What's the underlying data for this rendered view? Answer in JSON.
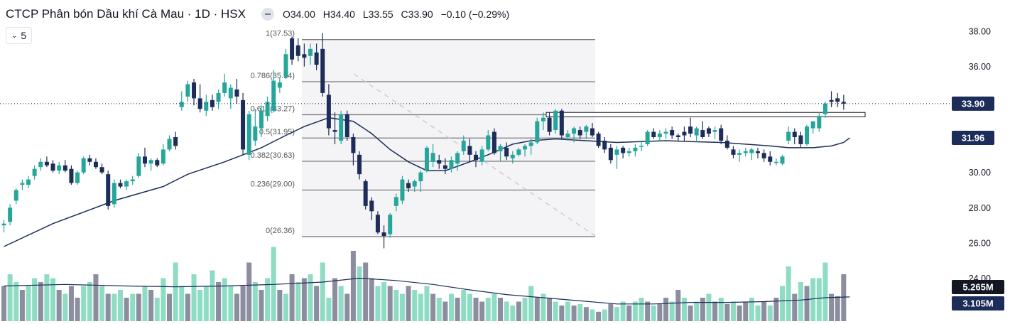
{
  "header": {
    "title": "CTCP Phân bón Dầu khí Cà Mau · 1D · HSX",
    "open": "O34.00",
    "high": "H34.40",
    "low": "L33.55",
    "close": "C33.90",
    "change": "−0.10 (−0.29%)",
    "indicator_count": "5"
  },
  "colors": {
    "up": "#26a69a",
    "down": "#1d2d5a",
    "up_volume": "#8fdcc4",
    "down_volume": "#8c8d9f",
    "ma": "#1d2d5a"
  },
  "chart_data": {
    "type": "candlestick",
    "y_axis": {
      "range": [
        24.5,
        39.0
      ],
      "ticks": [
        "38.00",
        "36.00",
        "34.00",
        "32.00",
        "30.00",
        "28.00",
        "26.00",
        "24.00"
      ]
    },
    "price_labels": {
      "last": "33.90",
      "ma": "31.96",
      "volume": "5.265M",
      "volume_ma": "3.105M"
    },
    "fib_levels": [
      {
        "ratio": "1",
        "value": 37.53,
        "label": "1(37.53)"
      },
      {
        "ratio": "0.786",
        "value": 35.14,
        "label": "0.786(35.14)"
      },
      {
        "ratio": "0.618",
        "value": 33.27,
        "label": "0.618(33.27)"
      },
      {
        "ratio": "0.5",
        "value": 31.95,
        "label": "0.5(31.95)"
      },
      {
        "ratio": "0.382",
        "value": 30.63,
        "label": "0.382(30.63)"
      },
      {
        "ratio": "0.236",
        "value": 29.0,
        "label": "0.236(29.00)"
      },
      {
        "ratio": "0",
        "value": 26.36,
        "label": "0(26.36)"
      }
    ],
    "resistance_zone": [
      33.15,
      33.4
    ],
    "candles": [
      [
        27.0,
        27.3,
        26.6,
        27.1
      ],
      [
        27.2,
        28.2,
        27.0,
        28.0
      ],
      [
        28.4,
        29.1,
        28.2,
        29.0
      ],
      [
        29.3,
        29.6,
        29.0,
        29.4
      ],
      [
        29.3,
        29.8,
        29.1,
        29.6
      ],
      [
        29.8,
        30.4,
        29.6,
        30.2
      ],
      [
        30.3,
        30.8,
        30.1,
        30.6
      ],
      [
        30.6,
        30.9,
        30.3,
        30.4
      ],
      [
        30.5,
        30.7,
        30.0,
        30.1
      ],
      [
        30.1,
        30.6,
        29.9,
        30.4
      ],
      [
        30.4,
        30.7,
        30.0,
        30.1
      ],
      [
        30.2,
        30.4,
        29.3,
        29.4
      ],
      [
        29.4,
        30.1,
        29.3,
        30.0
      ],
      [
        30.0,
        30.9,
        29.9,
        30.8
      ],
      [
        30.8,
        31.0,
        30.4,
        30.6
      ],
      [
        30.6,
        30.8,
        30.2,
        30.3
      ],
      [
        30.3,
        30.5,
        29.9,
        30.0
      ],
      [
        29.9,
        30.1,
        27.9,
        28.1
      ],
      [
        28.2,
        29.6,
        28.0,
        29.4
      ],
      [
        29.4,
        29.6,
        29.1,
        29.2
      ],
      [
        29.2,
        29.6,
        29.0,
        29.5
      ],
      [
        29.5,
        29.8,
        29.3,
        29.6
      ],
      [
        29.8,
        31.1,
        29.7,
        30.9
      ],
      [
        30.9,
        31.4,
        30.3,
        30.5
      ],
      [
        30.5,
        30.8,
        30.1,
        30.7
      ],
      [
        30.7,
        30.8,
        30.3,
        30.4
      ],
      [
        30.5,
        31.6,
        30.4,
        31.3
      ],
      [
        31.3,
        32.1,
        31.2,
        31.9
      ],
      [
        32.0,
        32.3,
        31.3,
        31.5
      ],
      [
        33.7,
        34.6,
        33.5,
        34.0
      ],
      [
        34.3,
        35.2,
        34.0,
        35.0
      ],
      [
        35.1,
        35.3,
        33.8,
        34.2
      ],
      [
        34.2,
        35.0,
        33.4,
        33.6
      ],
      [
        33.5,
        34.4,
        33.2,
        34.0
      ],
      [
        34.1,
        34.4,
        33.5,
        33.7
      ],
      [
        34.0,
        34.7,
        33.6,
        34.5
      ],
      [
        34.5,
        35.6,
        34.3,
        35.1
      ],
      [
        34.2,
        35.0,
        33.6,
        34.8
      ],
      [
        34.7,
        35.3,
        33.9,
        34.3
      ],
      [
        34.1,
        34.5,
        31.0,
        31.3
      ],
      [
        31.0,
        33.5,
        30.7,
        33.3
      ],
      [
        31.8,
        33.6,
        31.5,
        32.6
      ],
      [
        32.5,
        33.8,
        32.0,
        33.5
      ],
      [
        33.2,
        34.3,
        32.9,
        34.0
      ],
      [
        33.5,
        35.8,
        33.4,
        35.2
      ],
      [
        34.8,
        35.4,
        34.5,
        35.1
      ],
      [
        35.4,
        37.0,
        35.3,
        36.7
      ],
      [
        37.6,
        37.7,
        36.1,
        36.4
      ],
      [
        37.2,
        37.6,
        36.3,
        36.6
      ],
      [
        36.7,
        37.3,
        36.0,
        36.5
      ],
      [
        36.6,
        37.3,
        36.1,
        37.0
      ],
      [
        36.8,
        37.3,
        35.8,
        36.1
      ],
      [
        37.0,
        37.9,
        34.3,
        34.5
      ],
      [
        34.4,
        35.0,
        32.1,
        32.5
      ],
      [
        32.4,
        33.4,
        31.6,
        32.3
      ],
      [
        31.8,
        33.5,
        31.6,
        33.3
      ],
      [
        33.3,
        33.5,
        31.8,
        32.0
      ],
      [
        32.0,
        32.2,
        30.4,
        31.1
      ],
      [
        31.0,
        31.2,
        29.6,
        29.9
      ],
      [
        29.5,
        29.6,
        27.9,
        28.1
      ],
      [
        28.4,
        28.6,
        27.3,
        27.8
      ],
      [
        27.6,
        27.8,
        26.5,
        26.6
      ],
      [
        26.6,
        27.0,
        25.7,
        26.4
      ],
      [
        26.5,
        27.7,
        26.3,
        27.6
      ],
      [
        28.1,
        28.8,
        27.8,
        28.6
      ],
      [
        28.4,
        29.8,
        28.2,
        29.6
      ],
      [
        29.4,
        29.6,
        28.9,
        29.1
      ],
      [
        29.2,
        29.6,
        28.9,
        29.5
      ],
      [
        29.5,
        30.1,
        28.9,
        30.0
      ],
      [
        30.1,
        31.5,
        30.0,
        31.4
      ],
      [
        30.6,
        31.6,
        30.3,
        31.1
      ],
      [
        30.7,
        31.0,
        30.2,
        30.5
      ],
      [
        30.4,
        30.8,
        29.9,
        30.2
      ],
      [
        30.2,
        30.9,
        30.0,
        30.7
      ],
      [
        30.5,
        31.2,
        30.1,
        31.1
      ],
      [
        31.2,
        32.1,
        31.0,
        31.8
      ],
      [
        31.5,
        31.9,
        30.6,
        31.0
      ],
      [
        31.0,
        31.2,
        30.3,
        30.7
      ],
      [
        30.6,
        31.5,
        30.4,
        31.3
      ],
      [
        31.3,
        32.4,
        31.2,
        32.1
      ],
      [
        32.3,
        32.5,
        31.0,
        31.1
      ],
      [
        31.2,
        31.6,
        30.6,
        31.5
      ],
      [
        31.4,
        31.7,
        30.7,
        30.9
      ],
      [
        30.8,
        31.2,
        30.5,
        31.0
      ],
      [
        31.0,
        31.4,
        30.9,
        31.3
      ],
      [
        31.3,
        31.6,
        30.9,
        31.5
      ],
      [
        31.5,
        31.9,
        31.0,
        31.7
      ],
      [
        31.7,
        33.1,
        31.6,
        32.9
      ],
      [
        32.9,
        33.4,
        32.4,
        33.1
      ],
      [
        33.1,
        33.4,
        32.1,
        32.3
      ],
      [
        32.4,
        33.6,
        32.2,
        33.5
      ],
      [
        33.5,
        33.6,
        31.9,
        32.1
      ],
      [
        32.0,
        32.4,
        31.8,
        32.2
      ],
      [
        32.2,
        32.6,
        31.7,
        32.5
      ],
      [
        32.4,
        32.6,
        31.9,
        32.1
      ],
      [
        32.3,
        32.7,
        31.9,
        32.6
      ],
      [
        32.5,
        32.8,
        32.0,
        32.1
      ],
      [
        32.2,
        32.3,
        31.4,
        31.5
      ],
      [
        31.8,
        32.0,
        31.1,
        31.3
      ],
      [
        31.4,
        31.6,
        30.5,
        30.7
      ],
      [
        31.0,
        31.5,
        30.2,
        31.3
      ],
      [
        31.4,
        31.5,
        30.8,
        31.1
      ],
      [
        31.1,
        31.4,
        30.9,
        31.2
      ],
      [
        31.2,
        31.6,
        30.9,
        31.4
      ],
      [
        31.5,
        31.8,
        31.2,
        31.5
      ],
      [
        31.6,
        32.4,
        31.5,
        32.3
      ],
      [
        32.3,
        32.5,
        31.9,
        32.0
      ],
      [
        32.0,
        32.4,
        31.8,
        32.2
      ],
      [
        32.2,
        32.5,
        31.9,
        32.3
      ],
      [
        32.4,
        32.6,
        31.9,
        32.1
      ],
      [
        32.1,
        32.2,
        31.8,
        32.0
      ],
      [
        32.3,
        32.6,
        31.8,
        32.1
      ],
      [
        32.6,
        33.1,
        32.0,
        32.2
      ],
      [
        32.1,
        32.6,
        31.7,
        32.5
      ],
      [
        32.4,
        32.9,
        31.9,
        32.0
      ],
      [
        32.5,
        32.6,
        32.0,
        32.2
      ],
      [
        32.3,
        32.6,
        31.9,
        32.4
      ],
      [
        32.5,
        32.7,
        31.6,
        31.8
      ],
      [
        31.8,
        32.1,
        31.3,
        31.4
      ],
      [
        31.3,
        31.5,
        30.8,
        31.0
      ],
      [
        31.0,
        31.3,
        30.6,
        31.1
      ],
      [
        31.1,
        31.4,
        30.9,
        31.2
      ],
      [
        31.1,
        31.4,
        30.7,
        31.3
      ],
      [
        31.2,
        31.4,
        30.8,
        31.1
      ],
      [
        31.1,
        31.3,
        30.6,
        30.8
      ],
      [
        30.9,
        31.2,
        30.4,
        30.6
      ],
      [
        30.6,
        30.8,
        30.4,
        30.6
      ],
      [
        30.5,
        31.0,
        30.4,
        30.9
      ],
      [
        31.8,
        32.6,
        31.6,
        32.3
      ],
      [
        32.3,
        32.5,
        31.6,
        32.0
      ],
      [
        32.1,
        32.3,
        31.4,
        31.6
      ],
      [
        31.6,
        32.7,
        31.5,
        32.6
      ],
      [
        32.5,
        32.9,
        32.2,
        32.9
      ],
      [
        32.5,
        33.4,
        32.3,
        33.2
      ],
      [
        33.3,
        34.0,
        33.1,
        33.9
      ],
      [
        34.1,
        34.6,
        33.7,
        34.0
      ],
      [
        34.2,
        34.5,
        33.7,
        34.0
      ],
      [
        34.0,
        34.4,
        33.55,
        33.9
      ]
    ],
    "volume": [
      [
        0.45,
        0
      ],
      [
        0.6,
        1
      ],
      [
        0.5,
        1
      ],
      [
        0.4,
        0
      ],
      [
        0.45,
        1
      ],
      [
        0.55,
        1
      ],
      [
        0.5,
        0
      ],
      [
        0.6,
        1
      ],
      [
        0.55,
        1
      ],
      [
        0.4,
        0
      ],
      [
        0.35,
        1
      ],
      [
        0.45,
        0
      ],
      [
        0.3,
        0
      ],
      [
        0.45,
        1
      ],
      [
        0.5,
        1
      ],
      [
        0.6,
        0
      ],
      [
        0.45,
        1
      ],
      [
        0.35,
        0
      ],
      [
        0.35,
        1
      ],
      [
        0.4,
        1
      ],
      [
        0.3,
        0
      ],
      [
        0.35,
        1
      ],
      [
        0.35,
        0
      ],
      [
        0.45,
        1
      ],
      [
        0.4,
        0
      ],
      [
        0.3,
        1
      ],
      [
        0.55,
        1
      ],
      [
        0.35,
        0
      ],
      [
        0.75,
        1
      ],
      [
        0.45,
        1
      ],
      [
        0.35,
        0
      ],
      [
        0.6,
        1
      ],
      [
        0.4,
        1
      ],
      [
        0.45,
        1
      ],
      [
        0.65,
        1
      ],
      [
        0.5,
        0
      ],
      [
        0.55,
        1
      ],
      [
        0.45,
        1
      ],
      [
        0.35,
        0
      ],
      [
        0.45,
        0
      ],
      [
        0.75,
        0
      ],
      [
        0.5,
        1
      ],
      [
        0.4,
        0
      ],
      [
        0.55,
        1
      ],
      [
        0.95,
        1
      ],
      [
        0.4,
        0
      ],
      [
        0.35,
        1
      ],
      [
        0.6,
        0
      ],
      [
        0.5,
        1
      ],
      [
        0.55,
        0
      ],
      [
        0.6,
        1
      ],
      [
        0.45,
        0
      ],
      [
        0.75,
        1
      ],
      [
        0.3,
        1
      ],
      [
        0.55,
        0
      ],
      [
        0.45,
        1
      ],
      [
        0.35,
        0
      ],
      [
        0.9,
        0
      ],
      [
        0.7,
        1
      ],
      [
        0.75,
        0
      ],
      [
        0.55,
        0
      ],
      [
        0.45,
        1
      ],
      [
        0.5,
        1
      ],
      [
        0.45,
        0
      ],
      [
        0.4,
        1
      ],
      [
        0.35,
        1
      ],
      [
        0.45,
        0
      ],
      [
        0.4,
        1
      ],
      [
        0.35,
        1
      ],
      [
        0.45,
        1
      ],
      [
        0.35,
        0
      ],
      [
        0.3,
        1
      ],
      [
        0.25,
        0
      ],
      [
        0.35,
        1
      ],
      [
        0.3,
        0
      ],
      [
        0.4,
        1
      ],
      [
        0.35,
        1
      ],
      [
        0.3,
        0
      ],
      [
        0.25,
        0
      ],
      [
        0.3,
        1
      ],
      [
        0.35,
        1
      ],
      [
        0.3,
        0
      ],
      [
        0.25,
        1
      ],
      [
        0.2,
        1
      ],
      [
        0.25,
        0
      ],
      [
        0.3,
        1
      ],
      [
        0.45,
        1
      ],
      [
        0.3,
        0
      ],
      [
        0.35,
        1
      ],
      [
        0.3,
        0
      ],
      [
        0.25,
        1
      ],
      [
        0.2,
        0
      ],
      [
        0.25,
        1
      ],
      [
        0.2,
        0
      ],
      [
        0.22,
        1
      ],
      [
        0.18,
        0
      ],
      [
        0.15,
        1
      ],
      [
        0.12,
        0
      ],
      [
        0.15,
        1
      ],
      [
        0.22,
        0
      ],
      [
        0.18,
        1
      ],
      [
        0.25,
        1
      ],
      [
        0.2,
        0
      ],
      [
        0.25,
        1
      ],
      [
        0.3,
        1
      ],
      [
        0.25,
        0
      ],
      [
        0.2,
        1
      ],
      [
        0.22,
        0
      ],
      [
        0.3,
        0
      ],
      [
        0.25,
        1
      ],
      [
        0.4,
        0
      ],
      [
        0.3,
        1
      ],
      [
        0.2,
        0
      ],
      [
        0.25,
        1
      ],
      [
        0.3,
        0
      ],
      [
        0.35,
        1
      ],
      [
        0.25,
        0
      ],
      [
        0.3,
        1
      ],
      [
        0.22,
        0
      ],
      [
        0.25,
        1
      ],
      [
        0.2,
        0
      ],
      [
        0.25,
        0
      ],
      [
        0.3,
        1
      ],
      [
        0.2,
        1
      ],
      [
        0.25,
        0
      ],
      [
        0.2,
        1
      ],
      [
        0.3,
        0
      ],
      [
        0.45,
        1
      ],
      [
        0.7,
        1
      ],
      [
        0.35,
        0
      ],
      [
        0.5,
        1
      ],
      [
        0.45,
        0
      ],
      [
        0.55,
        1
      ],
      [
        0.55,
        1
      ],
      [
        0.75,
        1
      ],
      [
        0.35,
        0
      ],
      [
        0.32,
        0
      ],
      [
        0.6,
        0
      ]
    ],
    "moving_average": [
      [
        0,
        25.8
      ],
      [
        8,
        27.1
      ],
      [
        18,
        28.4
      ],
      [
        26,
        29.2
      ],
      [
        30,
        29.9
      ],
      [
        36,
        30.6
      ],
      [
        42,
        31.4
      ],
      [
        46,
        32.1
      ],
      [
        49,
        32.6
      ],
      [
        53,
        33.1
      ],
      [
        57,
        32.9
      ],
      [
        60,
        32.2
      ],
      [
        63,
        31.3
      ],
      [
        66,
        30.6
      ],
      [
        69,
        30.1
      ],
      [
        72,
        30.1
      ],
      [
        76,
        30.6
      ],
      [
        79,
        31.0
      ],
      [
        83,
        31.6
      ],
      [
        86,
        31.8
      ],
      [
        90,
        31.9
      ],
      [
        95,
        31.8
      ],
      [
        100,
        31.7
      ],
      [
        104,
        31.75
      ],
      [
        108,
        31.8
      ],
      [
        112,
        31.75
      ],
      [
        117,
        31.7
      ],
      [
        121,
        31.6
      ],
      [
        125,
        31.5
      ],
      [
        128,
        31.4
      ],
      [
        132,
        31.4
      ],
      [
        135,
        31.5
      ],
      [
        137,
        31.7
      ],
      [
        138,
        31.96
      ]
    ],
    "volume_ma": [
      [
        0,
        0.45
      ],
      [
        10,
        0.47
      ],
      [
        20,
        0.45
      ],
      [
        28,
        0.44
      ],
      [
        36,
        0.45
      ],
      [
        44,
        0.47
      ],
      [
        52,
        0.5
      ],
      [
        58,
        0.55
      ],
      [
        64,
        0.52
      ],
      [
        70,
        0.47
      ],
      [
        76,
        0.4
      ],
      [
        82,
        0.34
      ],
      [
        88,
        0.3
      ],
      [
        94,
        0.26
      ],
      [
        100,
        0.22
      ],
      [
        106,
        0.22
      ],
      [
        112,
        0.24
      ],
      [
        118,
        0.24
      ],
      [
        124,
        0.25
      ],
      [
        130,
        0.27
      ],
      [
        134,
        0.3
      ],
      [
        138,
        0.31
      ]
    ]
  }
}
